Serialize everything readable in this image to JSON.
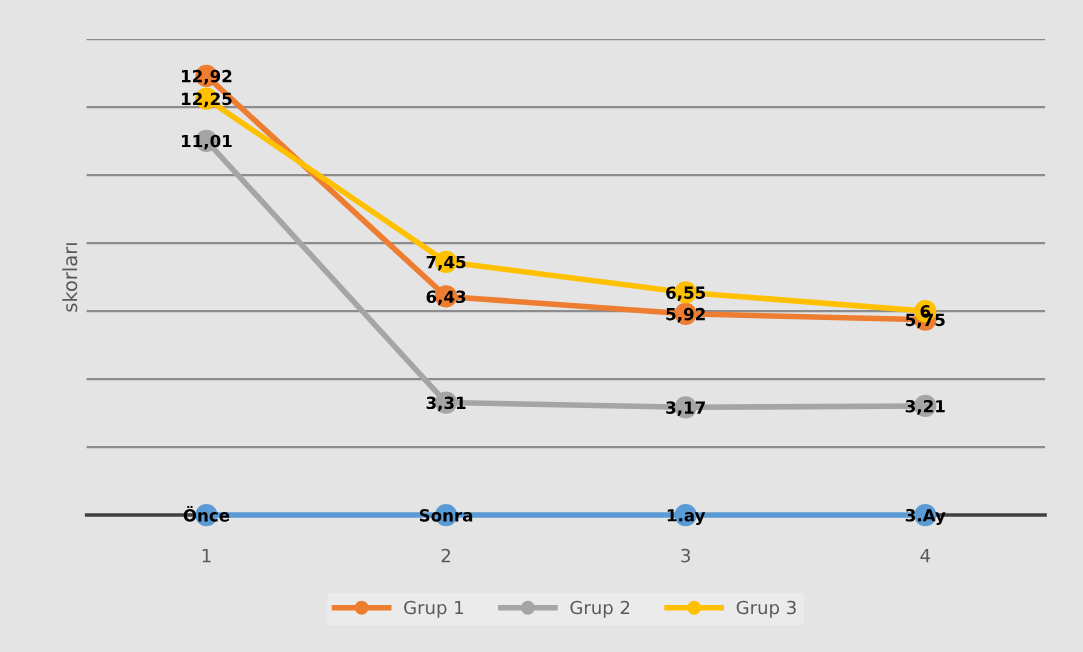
{
  "chart_data": {
    "type": "line",
    "ylabel": "skorları",
    "categories": [
      "1",
      "2",
      "3",
      "4"
    ],
    "annotations": [
      "Önce",
      "Sonra",
      "1.ay",
      "3.Ay"
    ],
    "ylim": [
      0,
      14
    ],
    "tick_labels": "x",
    "grid": "y",
    "legend": "bottom",
    "marker": "circle",
    "line_style": "solid",
    "series": [
      {
        "name": "Grup 1",
        "color": "#ed7d31",
        "values": [
          12.92,
          6.43,
          5.92,
          5.75
        ],
        "value_labels": [
          "12,92",
          "6,43",
          "5,92",
          "5,75"
        ]
      },
      {
        "name": "Grup 2",
        "color": "#a5a5a5",
        "values": [
          11.01,
          3.31,
          3.17,
          3.21
        ],
        "value_labels": [
          "11,01",
          "3,31",
          "3,17",
          "3,21"
        ]
      },
      {
        "name": "Grup 3",
        "color": "#ffc000",
        "values": [
          12.25,
          7.45,
          6.55,
          6
        ],
        "value_labels": [
          "12,25",
          "7,45",
          "6,55",
          "6"
        ]
      },
      {
        "color": "#5b9bd5",
        "values": [
          0,
          0,
          0,
          0
        ]
      }
    ]
  }
}
